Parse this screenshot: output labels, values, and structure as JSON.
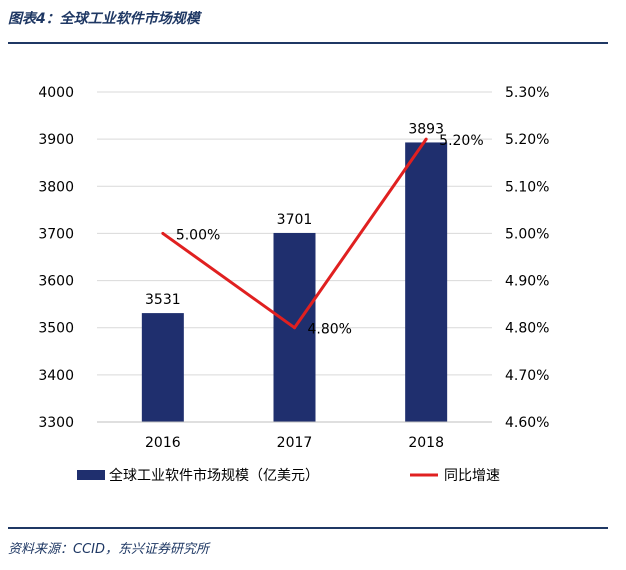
{
  "header": {
    "title": "图表4：全球工业软件市场规模"
  },
  "footer": {
    "source": "资料来源：CCID，东兴证券研究所"
  },
  "colors": {
    "bar": "#1f2f6e",
    "line": "#e02020",
    "rule": "#1f3864",
    "grid": "#d9d9d9"
  },
  "chart_data": {
    "type": "bar",
    "categories": [
      "2016",
      "2017",
      "2018"
    ],
    "series": [
      {
        "name": "全球工业软件市场规模（亿美元）",
        "type": "bar",
        "axis": "left",
        "values": [
          3531,
          3701,
          3893
        ],
        "labels": [
          "3531",
          "3701",
          "3893"
        ]
      },
      {
        "name": "同比增速",
        "type": "line",
        "axis": "right",
        "values": [
          5.0,
          4.8,
          5.2
        ],
        "labels": [
          "5.00%",
          "4.80%",
          "5.20%"
        ]
      }
    ],
    "y_left": {
      "range": [
        3300,
        4000
      ],
      "ticks": [
        "3300",
        "3400",
        "3500",
        "3600",
        "3700",
        "3800",
        "3900",
        "4000"
      ]
    },
    "y_right": {
      "range": [
        4.6,
        5.3
      ],
      "ticks": [
        "4.60%",
        "4.70%",
        "4.80%",
        "4.90%",
        "5.00%",
        "5.10%",
        "5.20%",
        "5.30%"
      ]
    },
    "grid": true,
    "legend_position": "bottom"
  }
}
